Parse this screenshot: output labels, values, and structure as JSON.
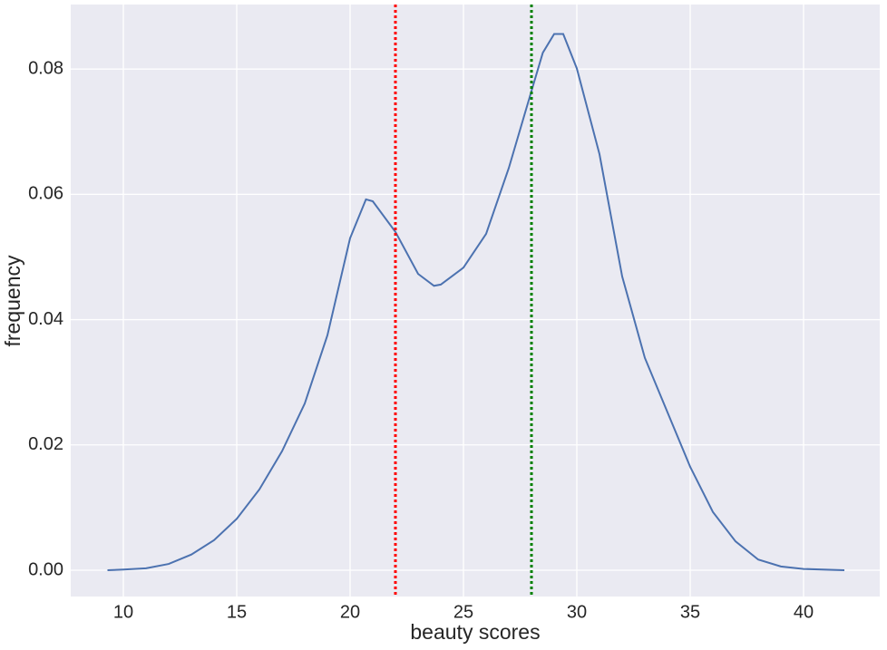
{
  "chart_data": {
    "type": "line",
    "xlabel": "beauty scores",
    "ylabel": "frequency",
    "x": [
      9.3,
      10,
      11,
      12,
      13,
      14,
      15,
      16,
      17,
      18,
      19,
      20,
      20.7,
      21,
      22,
      23,
      23.7,
      24,
      25,
      26,
      27,
      28,
      28.5,
      29,
      29.4,
      30,
      31,
      32,
      33,
      34,
      35,
      36,
      37,
      38,
      39,
      40,
      41.8
    ],
    "series": [
      {
        "color": "#4c72b0",
        "values": [
          0,
          0.0001,
          0.0003,
          0.001,
          0.0025,
          0.0048,
          0.0082,
          0.0129,
          0.019,
          0.0266,
          0.0375,
          0.053,
          0.0592,
          0.0589,
          0.054,
          0.0473,
          0.0454,
          0.0456,
          0.0483,
          0.0537,
          0.0642,
          0.0765,
          0.0826,
          0.0856,
          0.0856,
          0.0801,
          0.0664,
          0.0469,
          0.0339,
          0.0252,
          0.0165,
          0.0093,
          0.0046,
          0.0017,
          0.0006,
          0.0002,
          0
        ]
      }
    ],
    "vlines": [
      {
        "x": 22,
        "color": "#ff0000"
      },
      {
        "x": 28,
        "color": "#008000"
      }
    ],
    "xlim": [
      7.68,
      43.36
    ],
    "xticks": [
      10,
      15,
      20,
      25,
      30,
      35,
      40
    ],
    "ylim": [
      -0.0042,
      0.0903
    ],
    "yticks": [
      {
        "value": 0,
        "label": "0.00"
      },
      {
        "value": 0.02,
        "label": "0.02"
      },
      {
        "value": 0.04,
        "label": "0.04"
      },
      {
        "value": 0.06,
        "label": "0.06"
      },
      {
        "value": 0.08,
        "label": "0.08"
      }
    ],
    "grid": true
  }
}
